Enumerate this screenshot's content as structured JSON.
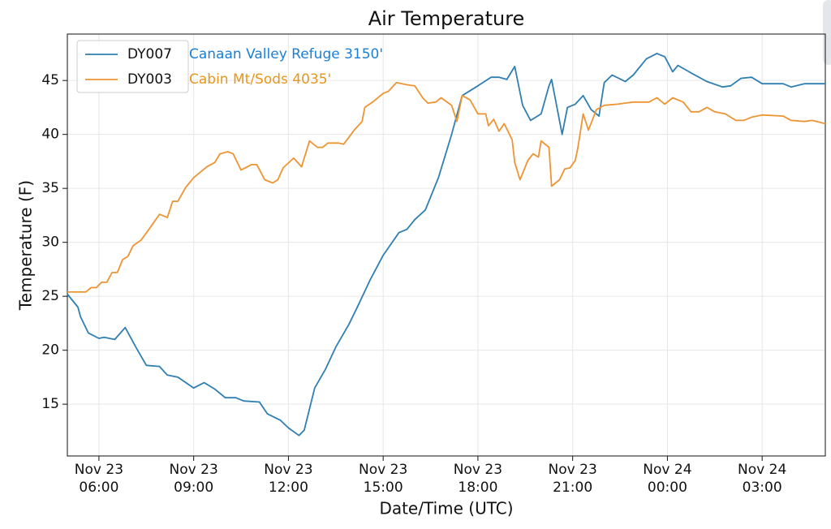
{
  "chart_data": {
    "type": "line",
    "title": "Air Temperature",
    "x_label": "Date/Time (UTC)",
    "y_label": "Temperature (F)",
    "xlim": [
      "Nov 23 05:00",
      "Nov 24 05:00"
    ],
    "xticks": [
      "Nov 23 06:00",
      "Nov 23 09:00",
      "Nov 23 12:00",
      "Nov 23 15:00",
      "Nov 23 18:00",
      "Nov 23 21:00",
      "Nov 24 00:00",
      "Nov 24 03:00"
    ],
    "ylim": [
      10.2,
      49.3
    ],
    "yticks": [
      15,
      20,
      25,
      30,
      35,
      40,
      45
    ],
    "grid": true,
    "legend": "upper left",
    "annotations": [
      {
        "text": "Canaan Valley Refuge 3150'",
        "color": "#1a7fd6"
      },
      {
        "text": "Cabin Mt/Sods 4035'",
        "color": "#e8961a"
      }
    ],
    "series": [
      {
        "name": "DY007",
        "color": "#2f7fb3",
        "x": [
          "Nov 23 05:00",
          "Nov 23 05:20",
          "Nov 23 05:25",
          "Nov 23 05:40",
          "Nov 23 06:00",
          "Nov 23 06:10",
          "Nov 23 06:30",
          "Nov 23 06:50",
          "Nov 23 07:10",
          "Nov 23 07:30",
          "Nov 23 07:55",
          "Nov 23 08:10",
          "Nov 23 08:30",
          "Nov 23 09:00",
          "Nov 23 09:20",
          "Nov 23 09:40",
          "Nov 23 10:00",
          "Nov 23 10:20",
          "Nov 23 10:35",
          "Nov 23 11:05",
          "Nov 23 11:20",
          "Nov 23 11:45",
          "Nov 23 12:00",
          "Nov 23 12:20",
          "Nov 23 12:30",
          "Nov 23 12:50",
          "Nov 23 13:10",
          "Nov 23 13:30",
          "Nov 23 13:55",
          "Nov 23 14:10",
          "Nov 23 14:35",
          "Nov 23 15:00",
          "Nov 23 15:30",
          "Nov 23 15:45",
          "Nov 23 16:00",
          "Nov 23 16:20",
          "Nov 23 16:45",
          "Nov 23 17:10",
          "Nov 23 17:30",
          "Nov 23 18:00",
          "Nov 23 18:25",
          "Nov 23 18:40",
          "Nov 23 18:55",
          "Nov 23 19:10",
          "Nov 23 19:25",
          "Nov 23 19:40",
          "Nov 23 20:00",
          "Nov 23 20:15",
          "Nov 23 20:20",
          "Nov 23 20:40",
          "Nov 23 20:50",
          "Nov 23 21:05",
          "Nov 23 21:20",
          "Nov 23 21:35",
          "Nov 23 21:50",
          "Nov 23 22:00",
          "Nov 23 22:15",
          "Nov 23 22:40",
          "Nov 23 22:55",
          "Nov 23 23:20",
          "Nov 23 23:40",
          "Nov 23 23:55",
          "Nov 24 00:10",
          "Nov 24 00:20",
          "Nov 24 00:45",
          "Nov 24 01:15",
          "Nov 24 01:45",
          "Nov 24 02:00",
          "Nov 24 02:20",
          "Nov 24 02:40",
          "Nov 24 03:00",
          "Nov 24 03:40",
          "Nov 24 03:55",
          "Nov 24 04:20",
          "Nov 24 05:00"
        ],
        "values": [
          25.2,
          24.0,
          23.1,
          21.6,
          21.1,
          21.2,
          21.0,
          22.1,
          20.3,
          18.6,
          18.5,
          17.7,
          17.5,
          16.5,
          17.0,
          16.4,
          15.6,
          15.6,
          15.3,
          15.2,
          14.1,
          13.5,
          12.8,
          12.1,
          12.6,
          16.5,
          18.2,
          20.3,
          22.4,
          23.9,
          26.5,
          28.8,
          30.9,
          31.2,
          32.1,
          33.0,
          36.0,
          40.0,
          43.6,
          44.5,
          45.3,
          45.3,
          45.1,
          46.3,
          42.7,
          41.3,
          41.9,
          44.5,
          45.1,
          40.0,
          42.5,
          42.8,
          43.6,
          42.3,
          41.7,
          44.8,
          45.5,
          44.9,
          45.5,
          47.0,
          47.5,
          47.2,
          45.8,
          46.4,
          45.7,
          44.9,
          44.4,
          44.5,
          45.2,
          45.3,
          44.7,
          44.7,
          44.4,
          44.7,
          44.7
        ]
      },
      {
        "name": "DY003",
        "color": "#ee9432",
        "x": [
          "Nov 23 05:00",
          "Nov 23 05:35",
          "Nov 23 05:45",
          "Nov 23 05:55",
          "Nov 23 06:05",
          "Nov 23 06:15",
          "Nov 23 06:25",
          "Nov 23 06:35",
          "Nov 23 06:45",
          "Nov 23 06:55",
          "Nov 23 07:05",
          "Nov 23 07:20",
          "Nov 23 07:35",
          "Nov 23 07:55",
          "Nov 23 08:10",
          "Nov 23 08:20",
          "Nov 23 08:30",
          "Nov 23 08:45",
          "Nov 23 09:00",
          "Nov 23 09:25",
          "Nov 23 09:40",
          "Nov 23 09:50",
          "Nov 23 10:05",
          "Nov 23 10:15",
          "Nov 23 10:30",
          "Nov 23 10:50",
          "Nov 23 11:00",
          "Nov 23 11:15",
          "Nov 23 11:30",
          "Nov 23 11:40",
          "Nov 23 11:50",
          "Nov 23 12:10",
          "Nov 23 12:25",
          "Nov 23 12:40",
          "Nov 23 12:55",
          "Nov 23 13:05",
          "Nov 23 13:15",
          "Nov 23 13:35",
          "Nov 23 13:45",
          "Nov 23 14:05",
          "Nov 23 14:20",
          "Nov 23 14:25",
          "Nov 23 14:40",
          "Nov 23 15:00",
          "Nov 23 15:10",
          "Nov 23 15:25",
          "Nov 23 15:45",
          "Nov 23 16:00",
          "Nov 23 16:15",
          "Nov 23 16:25",
          "Nov 23 16:40",
          "Nov 23 16:50",
          "Nov 23 17:10",
          "Nov 23 17:20",
          "Nov 23 17:30",
          "Nov 23 17:45",
          "Nov 23 18:00",
          "Nov 23 18:15",
          "Nov 23 18:20",
          "Nov 23 18:30",
          "Nov 23 18:40",
          "Nov 23 18:50",
          "Nov 23 19:05",
          "Nov 23 19:10",
          "Nov 23 19:20",
          "Nov 23 19:35",
          "Nov 23 19:45",
          "Nov 23 19:55",
          "Nov 23 20:00",
          "Nov 23 20:15",
          "Nov 23 20:20",
          "Nov 23 20:35",
          "Nov 23 20:45",
          "Nov 23 20:55",
          "Nov 23 21:05",
          "Nov 23 21:10",
          "Nov 23 21:20",
          "Nov 23 21:30",
          "Nov 23 21:45",
          "Nov 23 22:00",
          "Nov 23 22:25",
          "Nov 23 22:55",
          "Nov 23 23:25",
          "Nov 23 23:40",
          "Nov 23 23:55",
          "Nov 24 00:10",
          "Nov 24 00:30",
          "Nov 24 00:45",
          "Nov 24 01:00",
          "Nov 24 01:15",
          "Nov 24 01:30",
          "Nov 24 01:50",
          "Nov 24 02:10",
          "Nov 24 02:25",
          "Nov 24 02:40",
          "Nov 24 03:00",
          "Nov 24 03:40",
          "Nov 24 03:55",
          "Nov 24 04:20",
          "Nov 24 04:35",
          "Nov 24 05:00"
        ],
        "values": [
          25.4,
          25.4,
          25.8,
          25.8,
          26.3,
          26.3,
          27.2,
          27.2,
          28.4,
          28.7,
          29.7,
          30.2,
          31.2,
          32.6,
          32.3,
          33.8,
          33.8,
          35.1,
          36.0,
          37.0,
          37.4,
          38.2,
          38.4,
          38.2,
          36.7,
          37.2,
          37.2,
          35.8,
          35.5,
          35.8,
          36.9,
          37.8,
          37.0,
          39.4,
          38.8,
          38.8,
          39.2,
          39.2,
          39.1,
          40.4,
          41.2,
          42.5,
          43.0,
          43.8,
          44.0,
          44.8,
          44.6,
          44.5,
          43.4,
          42.9,
          43.0,
          43.4,
          42.7,
          41.2,
          43.6,
          43.2,
          41.9,
          41.9,
          40.8,
          41.4,
          40.3,
          41.0,
          39.5,
          37.4,
          35.8,
          37.6,
          38.2,
          37.9,
          39.4,
          38.8,
          35.2,
          35.8,
          36.8,
          36.9,
          37.6,
          38.8,
          41.9,
          40.4,
          42.3,
          42.7,
          42.8,
          43.0,
          43.0,
          43.4,
          42.8,
          43.4,
          43.0,
          42.1,
          42.1,
          42.5,
          42.1,
          41.9,
          41.3,
          41.3,
          41.6,
          41.8,
          41.7,
          41.3,
          41.2,
          41.3,
          41.0
        ]
      }
    ]
  }
}
